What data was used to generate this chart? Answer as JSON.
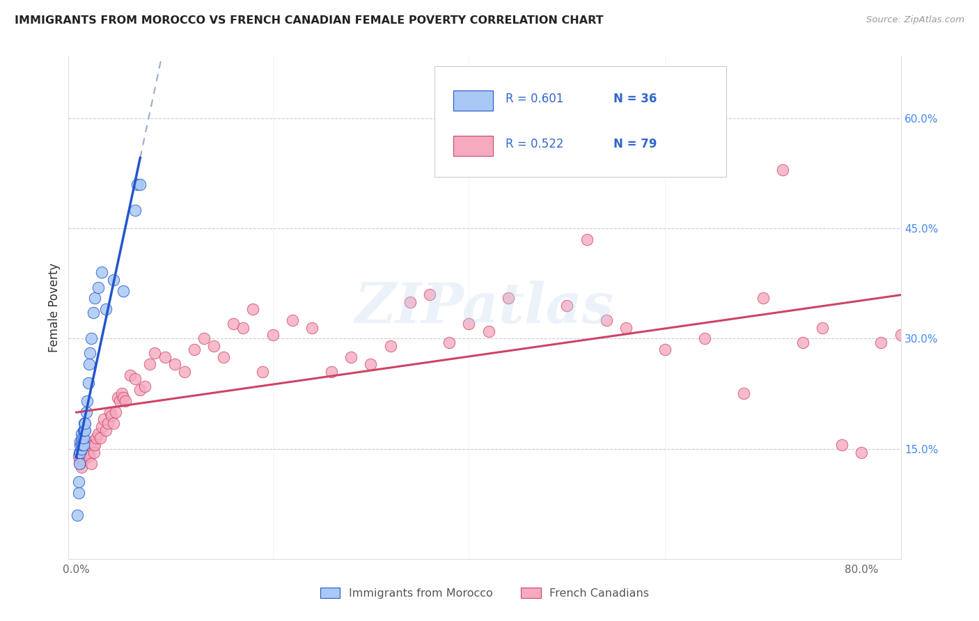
{
  "title": "IMMIGRANTS FROM MOROCCO VS FRENCH CANADIAN FEMALE POVERTY CORRELATION CHART",
  "source": "Source: ZipAtlas.com",
  "ylabel": "Female Poverty",
  "right_yticks": [
    "60.0%",
    "45.0%",
    "30.0%",
    "15.0%"
  ],
  "right_ytick_vals": [
    0.6,
    0.45,
    0.3,
    0.15
  ],
  "legend_label1": "Immigrants from Morocco",
  "legend_label2": "French Canadians",
  "R1": "0.601",
  "N1": "36",
  "R2": "0.522",
  "N2": "79",
  "color_blue": "#aac8f5",
  "color_pink": "#f5aabf",
  "line_blue": "#2255cc",
  "line_pink": "#cc4466",
  "dashed_blue": "#99aacc",
  "watermark": "ZIPatlas",
  "blue_x": [
    0.001,
    0.002,
    0.002,
    0.003,
    0.003,
    0.004,
    0.004,
    0.004,
    0.005,
    0.005,
    0.005,
    0.006,
    0.006,
    0.007,
    0.007,
    0.007,
    0.008,
    0.008,
    0.009,
    0.009,
    0.01,
    0.011,
    0.012,
    0.013,
    0.014,
    0.015,
    0.017,
    0.019,
    0.022,
    0.026,
    0.03,
    0.038,
    0.048,
    0.06,
    0.062,
    0.065
  ],
  "blue_y": [
    0.06,
    0.09,
    0.105,
    0.13,
    0.145,
    0.145,
    0.155,
    0.16,
    0.15,
    0.16,
    0.17,
    0.155,
    0.165,
    0.155,
    0.165,
    0.175,
    0.175,
    0.185,
    0.175,
    0.185,
    0.2,
    0.215,
    0.24,
    0.265,
    0.28,
    0.3,
    0.335,
    0.355,
    0.37,
    0.39,
    0.34,
    0.38,
    0.365,
    0.475,
    0.51,
    0.51
  ],
  "pink_x": [
    0.002,
    0.003,
    0.004,
    0.005,
    0.006,
    0.007,
    0.008,
    0.009,
    0.01,
    0.011,
    0.012,
    0.013,
    0.014,
    0.015,
    0.016,
    0.017,
    0.018,
    0.019,
    0.02,
    0.022,
    0.024,
    0.026,
    0.028,
    0.03,
    0.032,
    0.034,
    0.036,
    0.038,
    0.04,
    0.042,
    0.044,
    0.046,
    0.048,
    0.05,
    0.055,
    0.06,
    0.065,
    0.07,
    0.075,
    0.08,
    0.09,
    0.1,
    0.11,
    0.12,
    0.13,
    0.14,
    0.15,
    0.16,
    0.17,
    0.18,
    0.19,
    0.2,
    0.22,
    0.24,
    0.26,
    0.28,
    0.3,
    0.32,
    0.34,
    0.36,
    0.38,
    0.4,
    0.42,
    0.44,
    0.5,
    0.52,
    0.54,
    0.56,
    0.6,
    0.64,
    0.68,
    0.7,
    0.72,
    0.74,
    0.76,
    0.78,
    0.8,
    0.82,
    0.84
  ],
  "pink_y": [
    0.14,
    0.135,
    0.13,
    0.125,
    0.14,
    0.135,
    0.145,
    0.15,
    0.145,
    0.15,
    0.145,
    0.14,
    0.155,
    0.13,
    0.16,
    0.155,
    0.145,
    0.155,
    0.165,
    0.17,
    0.165,
    0.18,
    0.19,
    0.175,
    0.185,
    0.2,
    0.195,
    0.185,
    0.2,
    0.22,
    0.215,
    0.225,
    0.22,
    0.215,
    0.25,
    0.245,
    0.23,
    0.235,
    0.265,
    0.28,
    0.275,
    0.265,
    0.255,
    0.285,
    0.3,
    0.29,
    0.275,
    0.32,
    0.315,
    0.34,
    0.255,
    0.305,
    0.325,
    0.315,
    0.255,
    0.275,
    0.265,
    0.29,
    0.35,
    0.36,
    0.295,
    0.32,
    0.31,
    0.355,
    0.345,
    0.435,
    0.325,
    0.315,
    0.285,
    0.3,
    0.225,
    0.355,
    0.53,
    0.295,
    0.315,
    0.155,
    0.145,
    0.295,
    0.305
  ]
}
